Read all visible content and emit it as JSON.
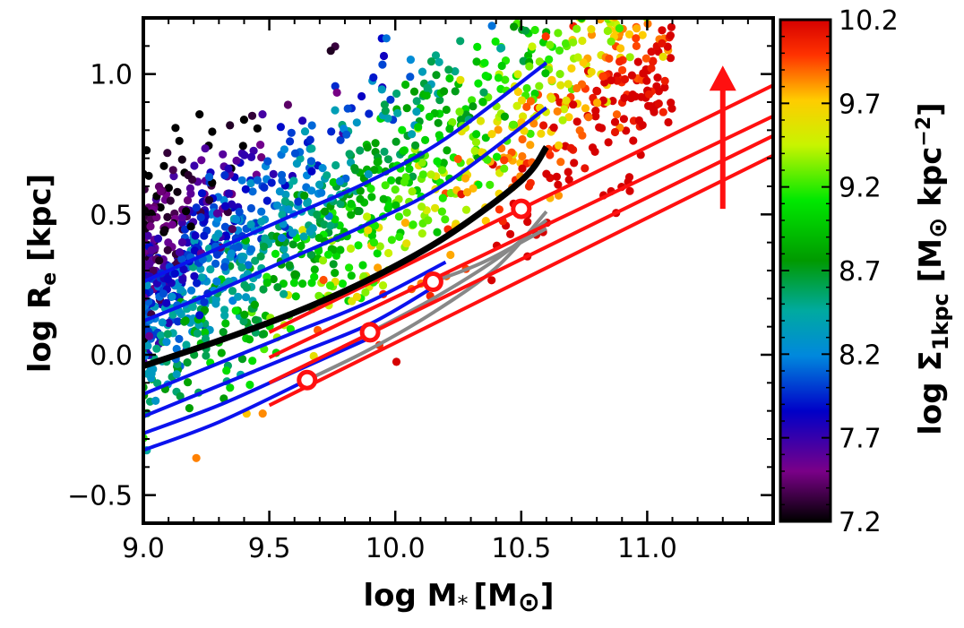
{
  "chart_data": {
    "type": "scatter",
    "xlabel": "log M",
    "xlabel_sub": "*",
    "xlabel_unit": "[M",
    "xlabel_unit_sub": "⊙",
    "xlabel_unit_close": "]",
    "ylabel": "log R",
    "ylabel_sub": "e",
    "ylabel_unit": " [kpc]",
    "xlim": [
      9.0,
      11.5
    ],
    "ylim": [
      -0.6,
      1.2
    ],
    "x_ticks": [
      9.0,
      9.5,
      10.0,
      10.5,
      11.0
    ],
    "x_tick_labels": [
      "9.0",
      "9.5",
      "10.0",
      "10.5",
      "11.0"
    ],
    "y_ticks": [
      -0.5,
      0.0,
      0.5,
      1.0
    ],
    "y_tick_labels": [
      "−0.5",
      "0.0",
      "0.5",
      "1.0"
    ],
    "colorbar": {
      "label": "log Σ",
      "label_sub": "1kpc",
      "label_unit": " [M",
      "label_unit_sub": "⊙",
      "label_unit_tail": " kpc",
      "label_unit_sup": "−2",
      "label_unit_close": "]",
      "range": [
        7.2,
        10.2
      ],
      "ticks": [
        7.2,
        7.7,
        8.2,
        8.7,
        9.2,
        9.7,
        10.2
      ],
      "tick_labels": [
        "7.2",
        "7.7",
        "8.2",
        "8.7",
        "9.2",
        "9.7",
        "10.2"
      ],
      "colormap": "nipy_spectral"
    },
    "scatter_n_points": 1500,
    "blue_tracks": [
      {
        "x": [
          9.0,
          9.3,
          9.6,
          9.9,
          10.2,
          10.6
        ],
        "y": [
          0.26,
          0.38,
          0.5,
          0.62,
          0.77,
          1.04
        ]
      },
      {
        "x": [
          9.0,
          9.3,
          9.6,
          9.9,
          10.2,
          10.6
        ],
        "y": [
          0.12,
          0.23,
          0.35,
          0.47,
          0.61,
          0.88
        ]
      },
      {
        "x": [
          9.0,
          9.3,
          9.6,
          9.9,
          10.2
        ],
        "y": [
          -0.14,
          -0.03,
          0.08,
          0.19,
          0.33
        ]
      },
      {
        "x": [
          9.0,
          9.3,
          9.6,
          9.9,
          10.15
        ],
        "y": [
          -0.22,
          -0.11,
          0.0,
          0.11,
          0.24
        ]
      },
      {
        "x": [
          9.0,
          9.3,
          9.6,
          9.9
        ],
        "y": [
          -0.28,
          -0.18,
          -0.06,
          0.06
        ]
      },
      {
        "x": [
          9.0,
          9.3,
          9.65
        ],
        "y": [
          -0.34,
          -0.24,
          -0.09
        ]
      }
    ],
    "median_relation": {
      "x": [
        9.0,
        9.3,
        9.6,
        9.9,
        10.2,
        10.5,
        10.6
      ],
      "y": [
        -0.04,
        0.05,
        0.15,
        0.27,
        0.42,
        0.62,
        0.74
      ]
    },
    "gray_tracks": [
      {
        "x": [
          9.65,
          9.9,
          10.15,
          10.4,
          10.6
        ],
        "y": [
          -0.09,
          0.02,
          0.15,
          0.31,
          0.51
        ]
      },
      {
        "x": [
          9.9,
          10.15,
          10.4,
          10.6
        ],
        "y": [
          0.08,
          0.2,
          0.34,
          0.48
        ]
      },
      {
        "x": [
          10.15,
          10.35,
          10.6
        ],
        "y": [
          0.26,
          0.33,
          0.45
        ]
      }
    ],
    "red_lines": [
      {
        "x": [
          9.5,
          11.5
        ],
        "y": [
          0.08,
          0.96
        ]
      },
      {
        "x": [
          9.5,
          11.5
        ],
        "y": [
          -0.01,
          0.85
        ]
      },
      {
        "x": [
          9.5,
          11.5
        ],
        "y": [
          -0.1,
          0.78
        ]
      },
      {
        "x": [
          9.5,
          11.5
        ],
        "y": [
          -0.18,
          0.71
        ]
      }
    ],
    "anchor_points": [
      {
        "x": 9.65,
        "y": -0.09
      },
      {
        "x": 9.9,
        "y": 0.08
      },
      {
        "x": 10.15,
        "y": 0.26
      },
      {
        "x": 10.5,
        "y": 0.52
      }
    ],
    "arrow": {
      "x": 11.3,
      "y_from": 0.52,
      "y_to": 1.03
    },
    "colors": {
      "blue": "#0b12ee",
      "red": "#ff1010",
      "gray": "#888888",
      "median": "#000000"
    }
  }
}
